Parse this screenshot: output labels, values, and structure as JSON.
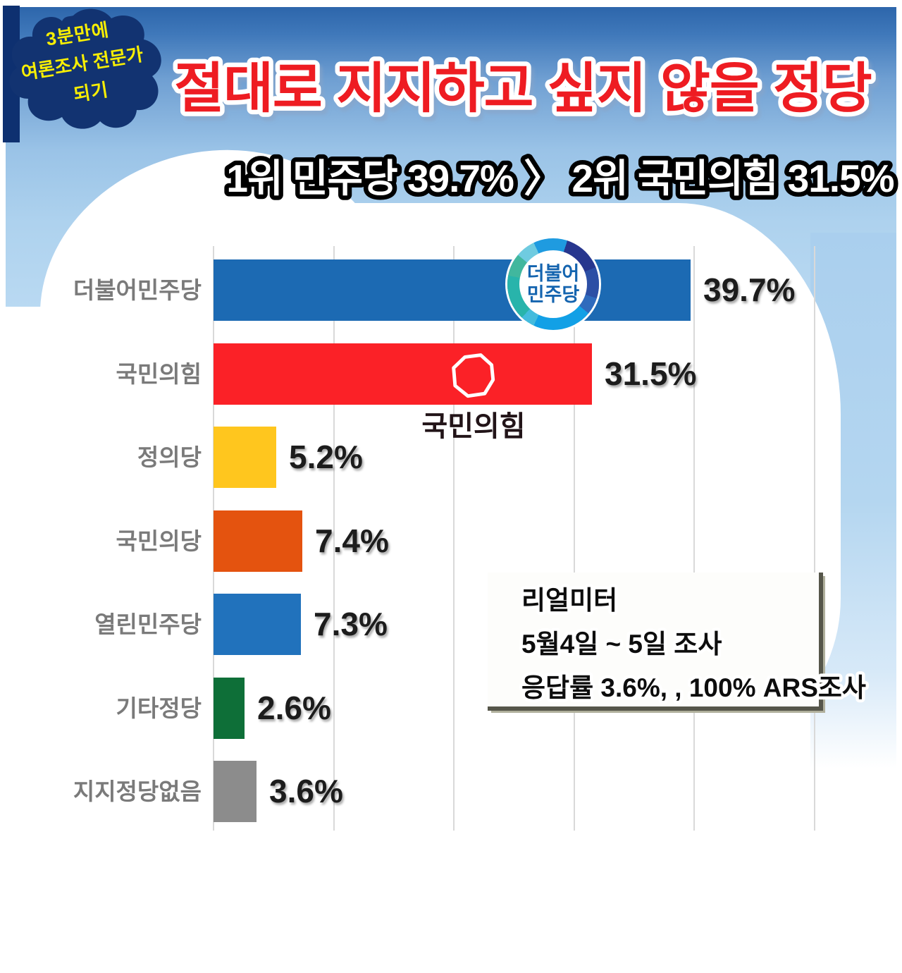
{
  "badge": {
    "line1": "3분만에",
    "line2": "여론조사 전문가",
    "line3": "되기"
  },
  "title": "절대로 지지하고 싶지 않을 정당",
  "subtitle": "1위 민주당 39.7% 〉 2위 국민의힘 31.5%",
  "chart_data": {
    "type": "bar",
    "orientation": "horizontal",
    "title": "절대로 지지하고 싶지 않을 정당",
    "categories": [
      "더불어민주당",
      "국민의힘",
      "정의당",
      "국민의당",
      "열린민주당",
      "기타정당",
      "지지정당없음"
    ],
    "values": [
      39.7,
      31.5,
      5.2,
      7.4,
      7.3,
      2.6,
      3.6
    ],
    "value_labels": [
      "39.7%",
      "31.5%",
      "5.2%",
      "7.4%",
      "7.3%",
      "2.6%",
      "3.6%"
    ],
    "bar_colors": [
      "#1c6ab3",
      "#fb2127",
      "#ffc61e",
      "#e4530f",
      "#2172bc",
      "#0e6f38",
      "#8c8c8c"
    ],
    "xlim": [
      0,
      50
    ],
    "gridline_interval": 10,
    "grid": true,
    "legend": "none",
    "xlabel": "",
    "ylabel": ""
  },
  "logos": {
    "minjoo_line1": "더불어",
    "minjoo_line2": "민주당",
    "ppp_label": "국민의힘"
  },
  "source_box": {
    "line1": "리얼미터",
    "line2": "5월4일 ~ 5일 조사",
    "line3": "응답률 3.6%, , 100% ARS조사"
  },
  "colors": {
    "title_red": "#ee1d23",
    "subtitle_fill": "#ffffff",
    "subtitle_outline": "#000000",
    "badge_navy": "#123371",
    "badge_text_yellow": "#f7ee04",
    "category_label_gray": "#7a7a7a",
    "gridline_gray": "#d9d9d9",
    "sky_top_blue": "#2d66ab",
    "sky_light_blue": "#aed2ee"
  }
}
